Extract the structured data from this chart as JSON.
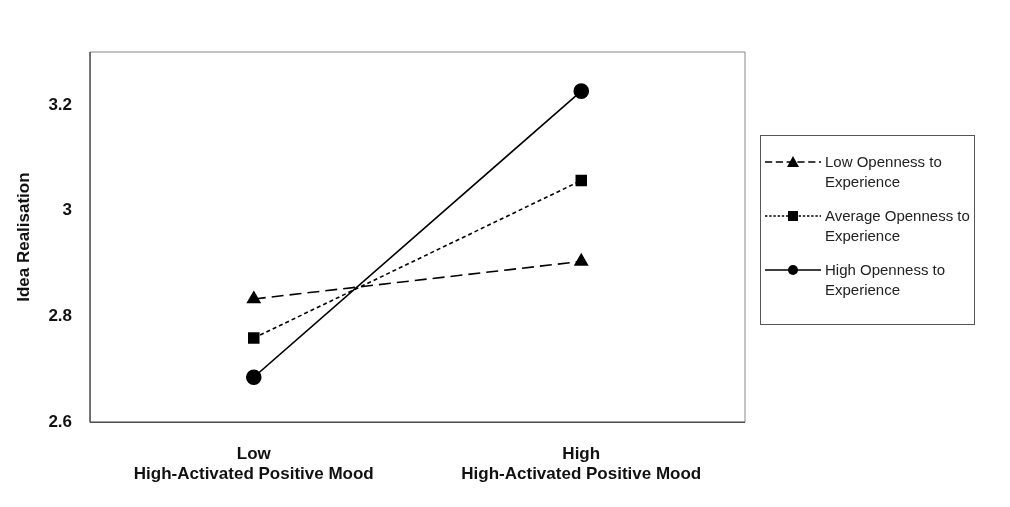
{
  "chart_data": {
    "type": "line",
    "ylabel": "Idea Realisation",
    "categories": [
      "Low\nHigh-Activated Positive Mood",
      "High\nHigh-Activated Positive Mood"
    ],
    "ylim": [
      2.6,
      3.3
    ],
    "yticks": [
      2.6,
      2.8,
      {
        "value": 3,
        "label": "3"
      },
      3.2
    ],
    "grid": false,
    "legend": "right",
    "series": [
      {
        "name": "Low Openness to Experience",
        "color": "#000000",
        "values": [
          2.833,
          2.904
        ],
        "marker": "triangle",
        "line_style": "dashed"
      },
      {
        "name": "Average Openness to Experience",
        "color": "#000000",
        "values": [
          2.759,
          3.057
        ],
        "marker": "square",
        "line_style": "dotted"
      },
      {
        "name": "High Openness to Experience",
        "color": "#000000",
        "values": [
          2.685,
          3.226
        ],
        "marker": "circle",
        "line_style": "solid"
      }
    ]
  }
}
